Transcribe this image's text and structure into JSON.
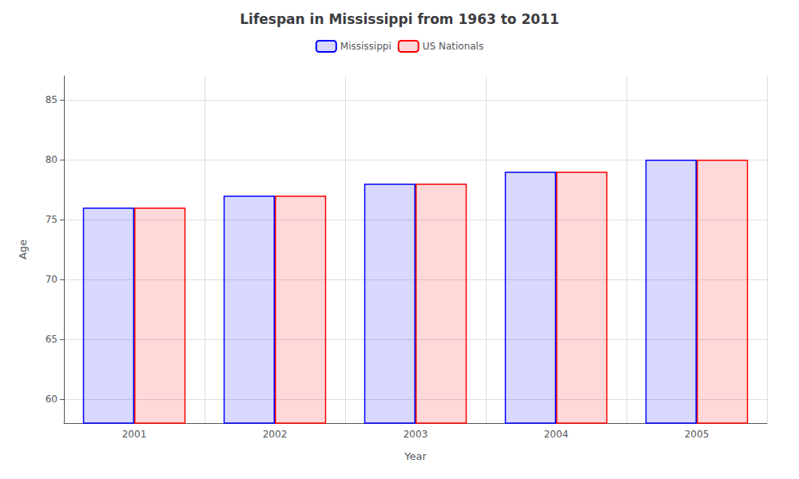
{
  "chart_data": {
    "type": "bar",
    "title": "Lifespan in Mississippi from 1963 to 2011",
    "x_label": "Year",
    "y_label": "Age",
    "categories": [
      "2001",
      "2002",
      "2003",
      "2004",
      "2005"
    ],
    "series": [
      {
        "name": "Mississippi",
        "color": "#0000ff",
        "values": [
          76,
          77,
          78,
          79,
          80
        ]
      },
      {
        "name": "US Nationals",
        "color": "#ff0000",
        "values": [
          76,
          77,
          78,
          79,
          80
        ]
      }
    ],
    "ylim": [
      58,
      87
    ],
    "yticks": [
      60,
      65,
      70,
      75,
      80,
      85
    ],
    "grid": true,
    "legend": "top"
  }
}
